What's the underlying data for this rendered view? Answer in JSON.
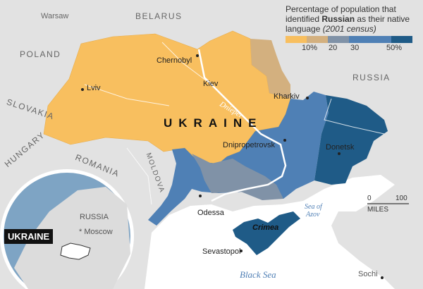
{
  "legend": {
    "title_pre": "Percentage of population that identified ",
    "title_bold": "Russian",
    "title_post": " as their native language ",
    "title_note": "(2001 census)",
    "colors": [
      "#f8bf5f",
      "#d3b07f",
      "#8092a7",
      "#4f80b5",
      "#1f5b87"
    ],
    "ticks": [
      "10%",
      "20",
      "30",
      "50%"
    ]
  },
  "countries": {
    "belarus": "BELARUS",
    "poland": "POLAND",
    "russia": "RUSSIA",
    "slovakia": "SLOVAKIA",
    "hungary": "HUNGARY",
    "romania": "ROMANIA",
    "moldova": "MOLDOVA",
    "ukraine": "UKRAINE"
  },
  "cities": {
    "warsaw": "Warsaw",
    "chernobyl": "Chernobyl",
    "kiev": "Kiev",
    "lviv": "Lviv",
    "kharkiv": "Kharkiv",
    "dnipropetrovsk": "Dnipropetrovsk",
    "donetsk": "Donetsk",
    "odessa": "Odessa",
    "sevastopol": "Sevastopol",
    "sochi": "Sochi"
  },
  "features": {
    "dnieper": "Dnieper",
    "crimea": "Crimea",
    "sea_of_azov_1": "Sea of",
    "sea_of_azov_2": "Azov",
    "black_sea": "Black Sea"
  },
  "scale": {
    "start": "0",
    "end": "100",
    "unit": "MILES"
  },
  "locator": {
    "russia": "RUSSIA",
    "moscow": "Moscow",
    "ukraine": "UKRAINE"
  }
}
